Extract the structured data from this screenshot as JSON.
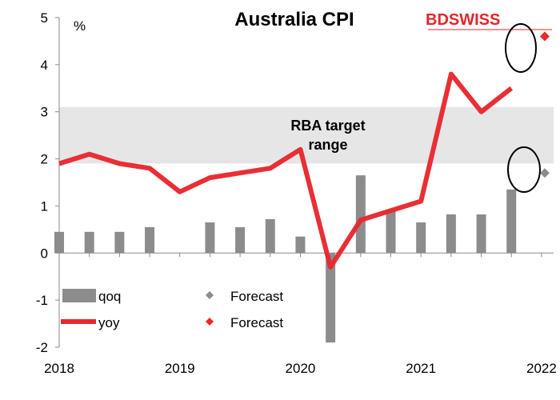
{
  "chart_data": {
    "type": "bar+line",
    "title": "Australia CPI",
    "unit_label": "%",
    "brand": {
      "part1": "BD",
      "part2": "SWISS",
      "color": "#e3262d"
    },
    "ylim": [
      -2,
      5
    ],
    "yticks": [
      -2,
      -1,
      0,
      1,
      2,
      3,
      4,
      5
    ],
    "xlim": [
      2018,
      2022.1
    ],
    "xticks": [
      "2018",
      "2019",
      "2020",
      "2021",
      "2022"
    ],
    "band": {
      "label_line1": "RBA target",
      "label_line2": "range",
      "low": 1.9,
      "high": 3.1,
      "color": "#e6e6e6"
    },
    "x": [
      2018.0,
      2018.25,
      2018.5,
      2018.75,
      2019.0,
      2019.25,
      2019.5,
      2019.75,
      2020.0,
      2020.25,
      2020.5,
      2020.75,
      2021.0,
      2021.25,
      2021.5,
      2021.75
    ],
    "series": [
      {
        "name": "qoq",
        "type": "bar",
        "color": "#8c8c8c",
        "values": [
          0.45,
          0.45,
          0.45,
          0.55,
          0.0,
          0.65,
          0.55,
          0.72,
          0.35,
          -1.9,
          1.65,
          0.9,
          0.65,
          0.82,
          0.82,
          1.35
        ]
      },
      {
        "name": "yoy",
        "type": "line",
        "color": "#e8282e",
        "values": [
          1.9,
          2.1,
          1.9,
          1.8,
          1.3,
          1.6,
          1.7,
          1.8,
          2.2,
          -0.3,
          0.7,
          0.9,
          1.1,
          3.8,
          3.0,
          3.5
        ]
      }
    ],
    "forecasts": [
      {
        "name": "Forecast",
        "series": "qoq",
        "x": 2022.0,
        "value": 1.7,
        "color": "#8c8c8c"
      },
      {
        "name": "Forecast",
        "series": "yoy",
        "x": 2022.0,
        "value": 4.6,
        "color": "#e8282e"
      }
    ],
    "legend": [
      {
        "label": "qoq",
        "kind": "bar",
        "color": "#8c8c8c"
      },
      {
        "label": "Forecast",
        "kind": "diamond",
        "color": "#8c8c8c"
      },
      {
        "label": "yoy",
        "kind": "line",
        "color": "#e8282e"
      },
      {
        "label": "Forecast",
        "kind": "diamond",
        "color": "#e8282e"
      }
    ],
    "legend_position": "bottom-left",
    "grid": false
  }
}
